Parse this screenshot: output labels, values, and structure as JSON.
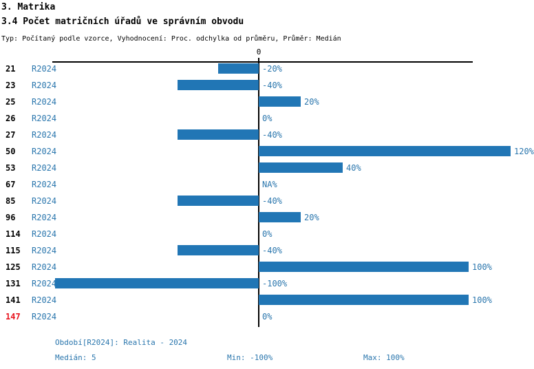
{
  "header": {
    "section_title": "3. Matrika"
  },
  "axis": {
    "zero_label": "0"
  },
  "chart_data": {
    "type": "bar",
    "orientation": "horizontal",
    "title": "3.4 Počet matričních úřadů ve správním obvodu",
    "subtitle": "Typ: Počítaný podle vzorce, Vyhodnocení: Proc. odchylka od průměru, Průměr: Medián",
    "series_label": "R2024",
    "categories": [
      "21",
      "23",
      "25",
      "26",
      "27",
      "50",
      "53",
      "67",
      "85",
      "96",
      "114",
      "115",
      "125",
      "131",
      "141",
      "147"
    ],
    "values": [
      -20,
      -40,
      20,
      0,
      -40,
      120,
      40,
      null,
      -40,
      20,
      0,
      -40,
      100,
      -100,
      100,
      0
    ],
    "value_labels": [
      "-20%",
      "-40%",
      "20%",
      "0%",
      "-40%",
      "120%",
      "40%",
      "NA%",
      "-40%",
      "20%",
      "0%",
      "-40%",
      "100%",
      "-100%",
      "100%",
      "0%"
    ],
    "highlighted_categories": [
      "147"
    ],
    "xlim": [
      -100,
      100
    ],
    "bar_color": "#2176b5",
    "highlight_color": "#e8141e",
    "text_color": "#2a76ad",
    "axis_zero_tick": "0",
    "legend_position": "none",
    "grid": false
  },
  "footer": {
    "period": "Období[R2024]: Realita - 2024",
    "median": "Medián: 5",
    "min": "Min: -100%",
    "max": "Max: 100%"
  }
}
